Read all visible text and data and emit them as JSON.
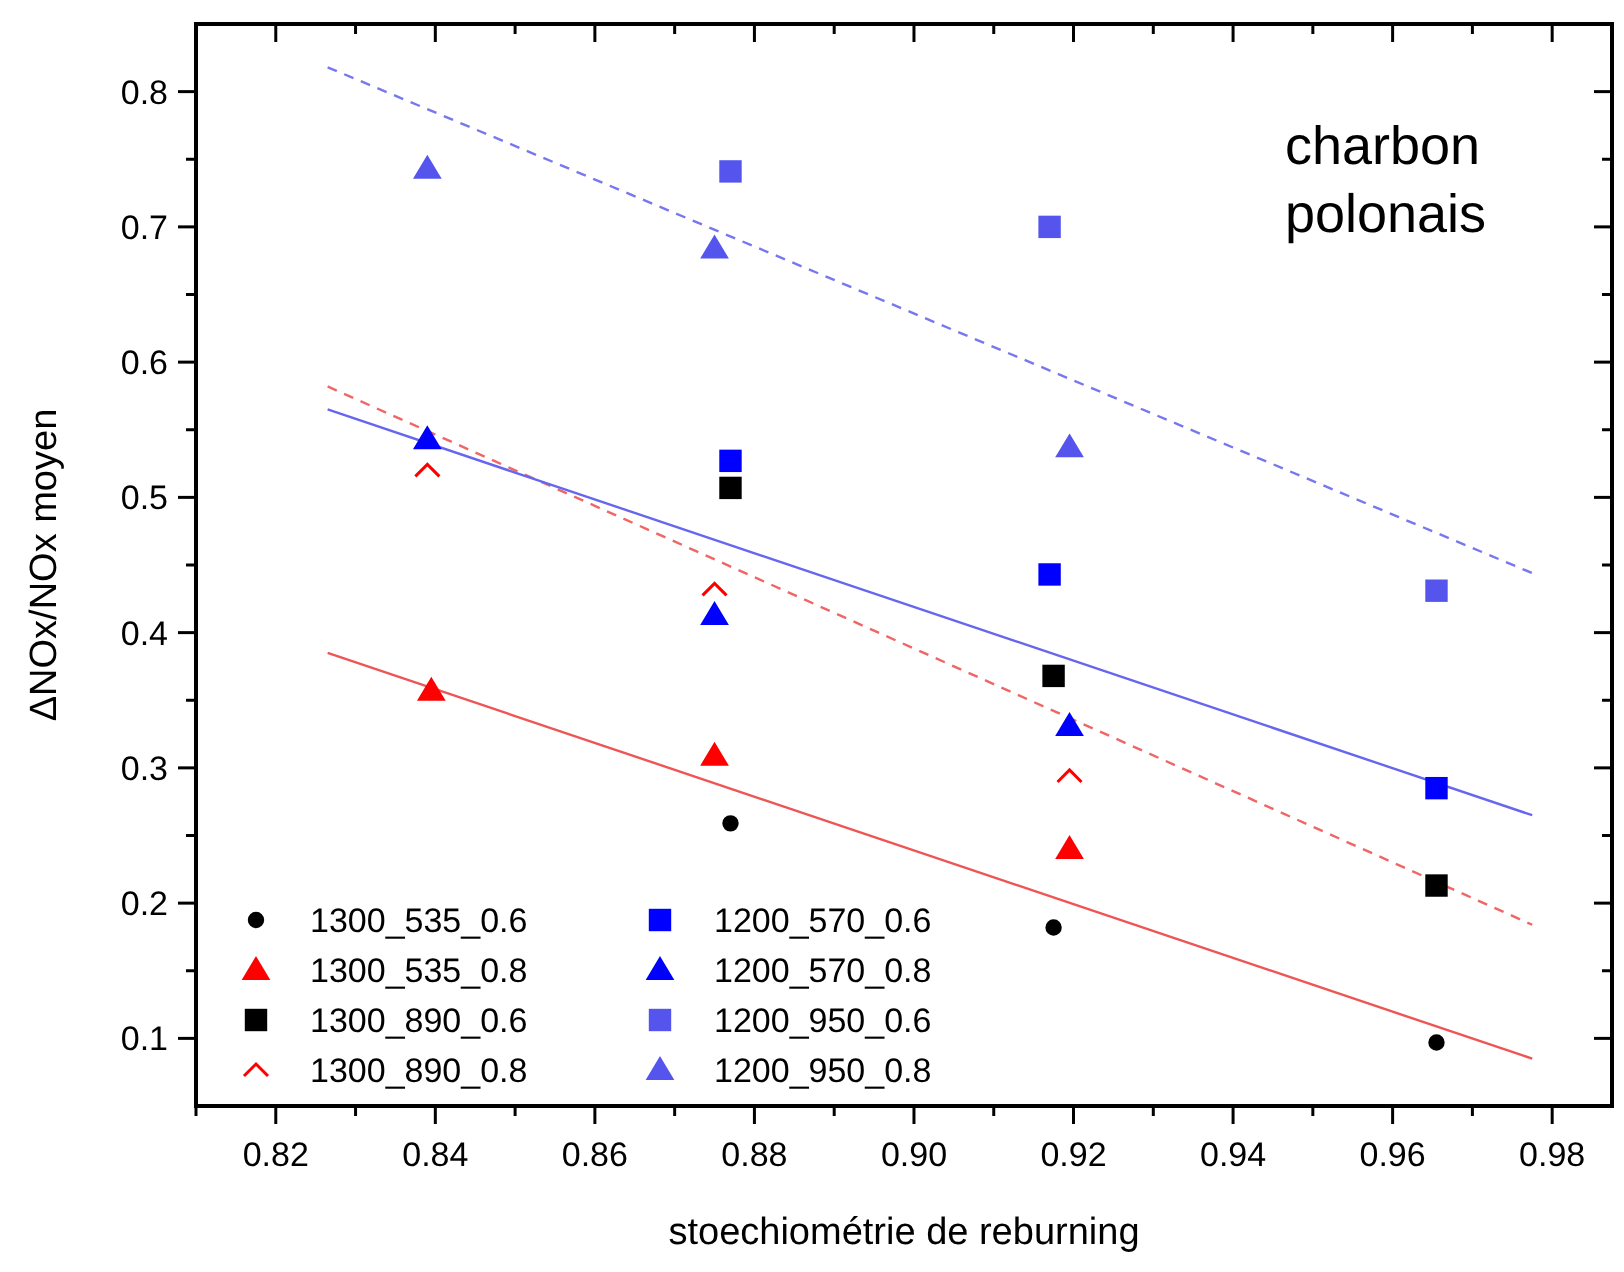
{
  "chart_data": {
    "type": "scatter",
    "xlabel": "stoechiométrie de reburning",
    "ylabel": "ΔNOx/NOx moyen",
    "annotations": [
      "charbon polonais"
    ],
    "xlim": [
      0.81,
      0.9875
    ],
    "ylim": [
      0.05,
      0.85
    ],
    "xticks": [
      {
        "value": 0.81,
        "label": null
      },
      0.82,
      {
        "value": 0.83,
        "label": null
      },
      0.84,
      {
        "value": 0.85,
        "label": null
      },
      0.86,
      {
        "value": 0.87,
        "label": null
      },
      0.88,
      {
        "value": 0.89,
        "label": null
      },
      {
        "value": 0.9,
        "label": "0.90"
      },
      {
        "value": 0.91,
        "label": null
      },
      0.92,
      {
        "value": 0.93,
        "label": null
      },
      0.94,
      {
        "value": 0.95,
        "label": null
      },
      0.96,
      {
        "value": 0.97,
        "label": null
      },
      0.98
    ],
    "yticks": [
      0.1,
      {
        "value": 0.15,
        "label": null
      },
      0.2,
      {
        "value": 0.25,
        "label": null
      },
      0.3,
      {
        "value": 0.35,
        "label": null
      },
      0.4,
      {
        "value": 0.45,
        "label": null
      },
      0.5,
      {
        "value": 0.55,
        "label": null
      },
      0.6,
      {
        "value": 0.65,
        "label": null
      },
      0.7,
      {
        "value": 0.75,
        "label": null
      },
      0.8
    ],
    "grid": false,
    "legend": "bottom left",
    "series": [
      {
        "name": "1300_535_0.6",
        "color": "#000000",
        "marker": "circle",
        "x": [
          0.877,
          0.9175,
          0.9655
        ],
        "values": [
          0.259,
          0.182,
          0.097
        ]
      },
      {
        "name": "1300_535_0.8",
        "color": "#ff0000",
        "marker": "triangle",
        "x": [
          0.8395,
          0.875,
          0.9195
        ],
        "values": [
          0.357,
          0.309,
          0.24
        ]
      },
      {
        "name": "1300_890_0.6",
        "color": "#000000",
        "marker": "square",
        "x": [
          0.877,
          0.9175,
          0.9655
        ],
        "values": [
          0.507,
          0.368,
          0.213
        ]
      },
      {
        "name": "1300_890_0.8",
        "color": "#ff0000",
        "marker": "cross",
        "x": [
          0.839,
          0.875,
          0.9195
        ],
        "values": [
          0.52,
          0.432,
          0.294
        ]
      },
      {
        "name": "1200_570_0.6",
        "color": "#0000ff",
        "marker": "square",
        "x": [
          0.877,
          0.917,
          0.9655
        ],
        "values": [
          0.527,
          0.443,
          0.285
        ]
      },
      {
        "name": "1200_570_0.8",
        "color": "#0000ff",
        "marker": "triangle",
        "x": [
          0.839,
          0.875,
          0.9195
        ],
        "values": [
          0.543,
          0.413,
          0.331
        ]
      },
      {
        "name": "1200_950_0.6",
        "color": "#5555ee",
        "marker": "square",
        "x": [
          0.877,
          0.917,
          0.9655
        ],
        "values": [
          0.741,
          0.7,
          0.431
        ]
      },
      {
        "name": "1200_950_0.8",
        "color": "#5555ee",
        "marker": "triangle",
        "x": [
          0.839,
          0.875,
          0.9195
        ],
        "values": [
          0.743,
          0.684,
          0.537
        ]
      },
      {
        "type": "line",
        "color": "#7777ee",
        "line_style": "dashed",
        "x": [
          0.8265,
          0.9775
        ],
        "values": [
          0.818,
          0.444
        ]
      },
      {
        "type": "line",
        "color": "#ee6666",
        "line_style": "dashed",
        "x": [
          0.8265,
          0.9775
        ],
        "values": [
          0.582,
          0.184
        ]
      },
      {
        "type": "line",
        "color": "#6666ee",
        "line_style": "solid",
        "x": [
          0.8265,
          0.9775
        ],
        "values": [
          0.565,
          0.265
        ]
      },
      {
        "type": "line",
        "color": "#ee5555",
        "line_style": "solid",
        "x": [
          0.8265,
          0.9775
        ],
        "values": [
          0.385,
          0.085
        ]
      }
    ]
  }
}
